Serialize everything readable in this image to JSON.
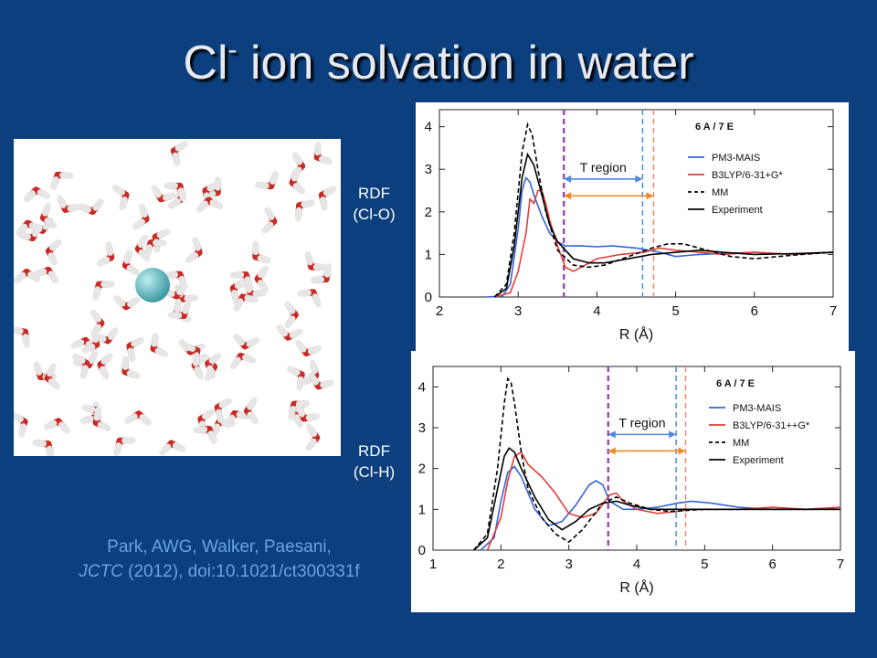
{
  "title": {
    "main": "Cl",
    "sup": "-",
    "rest": " ion solvation in water"
  },
  "labels": [
    {
      "line1": "RDF",
      "line2": "(Cl-O)"
    },
    {
      "line1": "RDF",
      "line2": "(Cl-H)"
    }
  ],
  "citation": {
    "line1": "Park, AWG, Walker, Paesani,",
    "journal": "JCTC",
    "rest": " (2012), doi:10.1021/ct300331f"
  },
  "colors": {
    "background": "#0b3f7d",
    "pm3": "#3465d9",
    "b3lyp": "#e0403a",
    "mm": "#000000",
    "exp": "#000000",
    "t_arrow_blue": "#4a8be0",
    "t_arrow_orange": "#f08a24"
  },
  "chart_data": [
    {
      "type": "line",
      "xlabel": "R (Å)",
      "ylabel": "",
      "xlim": [
        2,
        7
      ],
      "ylim": [
        0,
        4.4
      ],
      "xticks": [
        "2",
        "3",
        "4",
        "5",
        "6",
        "7"
      ],
      "yticks": [
        "0",
        "1",
        "2",
        "3",
        "4"
      ],
      "header": "6 A / 7      E",
      "annotation": "T region",
      "t_region": {
        "blue": [
          3.58,
          4.58
        ],
        "orange": [
          3.58,
          4.72
        ]
      },
      "vlines": [
        3.58,
        4.58,
        4.72
      ],
      "series": [
        {
          "name": "PM3-MAIS",
          "style": "solid",
          "x": [
            2.6,
            2.8,
            2.9,
            3.0,
            3.05,
            3.1,
            3.15,
            3.2,
            3.3,
            3.4,
            3.5,
            3.6,
            3.8,
            4.0,
            4.2,
            4.5,
            4.8,
            5.0,
            5.3,
            5.6,
            6.0,
            6.5,
            7.0
          ],
          "y": [
            0,
            0.02,
            0.3,
            1.6,
            2.5,
            2.8,
            2.7,
            2.4,
            1.9,
            1.5,
            1.3,
            1.2,
            1.2,
            1.18,
            1.2,
            1.15,
            1.05,
            0.95,
            1.0,
            1.02,
            1.05,
            1.0,
            1.05
          ]
        },
        {
          "name": "B3LYP/6-31+G*",
          "style": "solid",
          "x": [
            2.7,
            2.9,
            3.0,
            3.1,
            3.15,
            3.2,
            3.25,
            3.3,
            3.35,
            3.4,
            3.5,
            3.6,
            3.7,
            3.8,
            4.0,
            4.3,
            4.6,
            4.8,
            5.0,
            5.3,
            5.6,
            6.0,
            6.5,
            7.0
          ],
          "y": [
            0,
            0.1,
            0.6,
            1.5,
            2.3,
            2.2,
            2.5,
            2.5,
            2.2,
            1.8,
            1.2,
            0.7,
            0.6,
            0.7,
            0.9,
            1.0,
            1.05,
            1.15,
            1.1,
            1.05,
            1.0,
            1.05,
            1.0,
            1.05
          ]
        },
        {
          "name": "MM",
          "style": "dashed",
          "x": [
            2.7,
            2.85,
            2.95,
            3.05,
            3.12,
            3.18,
            3.25,
            3.35,
            3.5,
            3.7,
            3.9,
            4.1,
            4.4,
            4.7,
            4.9,
            5.1,
            5.4,
            5.7,
            6.0,
            6.3,
            6.6,
            7.0
          ],
          "y": [
            0,
            0.3,
            1.5,
            3.4,
            4.05,
            3.8,
            3.0,
            2.0,
            1.1,
            0.75,
            0.7,
            0.75,
            0.95,
            1.15,
            1.25,
            1.25,
            1.1,
            0.95,
            0.9,
            0.95,
            1.0,
            1.05
          ]
        },
        {
          "name": "Experiment",
          "style": "solid",
          "x": [
            2.7,
            2.85,
            2.95,
            3.05,
            3.12,
            3.2,
            3.3,
            3.4,
            3.5,
            3.7,
            3.9,
            4.1,
            4.4,
            4.7,
            5.0,
            5.3,
            5.6,
            6.0,
            6.5,
            7.0
          ],
          "y": [
            0,
            0.2,
            1.2,
            2.8,
            3.35,
            3.1,
            2.4,
            1.7,
            1.3,
            0.9,
            0.8,
            0.8,
            0.9,
            1.0,
            1.05,
            1.1,
            1.05,
            1.0,
            1.02,
            1.05
          ]
        }
      ]
    },
    {
      "type": "line",
      "xlabel": "R (Å)",
      "ylabel": "",
      "xlim": [
        1,
        7
      ],
      "ylim": [
        0,
        4.5
      ],
      "xticks": [
        "1",
        "2",
        "3",
        "4",
        "5",
        "6",
        "7"
      ],
      "yticks": [
        "0",
        "1",
        "2",
        "3",
        "4"
      ],
      "header": "6 A / 7      E",
      "annotation": "T region",
      "t_region": {
        "blue": [
          3.58,
          4.58
        ],
        "orange": [
          3.58,
          4.72
        ]
      },
      "vlines": [
        3.58,
        4.58,
        4.72
      ],
      "series": [
        {
          "name": "PM3-MAIS",
          "style": "solid",
          "x": [
            1.7,
            1.9,
            2.0,
            2.1,
            2.2,
            2.3,
            2.5,
            2.7,
            2.9,
            3.1,
            3.3,
            3.4,
            3.5,
            3.6,
            3.8,
            4.0,
            4.3,
            4.6,
            4.8,
            5.1,
            5.5,
            6.0,
            6.5,
            7.0
          ],
          "y": [
            0,
            0.3,
            1.2,
            1.9,
            2.05,
            1.8,
            1.0,
            0.6,
            0.7,
            1.1,
            1.6,
            1.7,
            1.6,
            1.2,
            1.0,
            1.0,
            1.05,
            1.15,
            1.2,
            1.15,
            1.05,
            1.0,
            1.0,
            1.05
          ]
        },
        {
          "name": "B3LYP/6-31++G*",
          "style": "solid",
          "x": [
            1.8,
            2.0,
            2.1,
            2.2,
            2.3,
            2.4,
            2.6,
            2.8,
            3.0,
            3.2,
            3.4,
            3.6,
            3.7,
            3.8,
            4.0,
            4.3,
            4.6,
            4.8,
            5.0,
            5.5,
            6.0,
            6.5,
            7.0
          ],
          "y": [
            0,
            0.8,
            1.7,
            2.3,
            2.4,
            2.1,
            1.8,
            1.4,
            0.9,
            0.8,
            0.9,
            1.35,
            1.4,
            1.2,
            1.0,
            0.9,
            0.95,
            1.0,
            1.0,
            1.0,
            1.05,
            1.0,
            1.05
          ]
        },
        {
          "name": "MM",
          "style": "dashed",
          "x": [
            1.6,
            1.8,
            1.95,
            2.05,
            2.1,
            2.15,
            2.2,
            2.3,
            2.4,
            2.6,
            2.8,
            3.0,
            3.2,
            3.5,
            3.7,
            3.9,
            4.2,
            4.5,
            5.0,
            5.5,
            6.0,
            6.5,
            7.0
          ],
          "y": [
            0,
            0.4,
            2.0,
            3.6,
            4.2,
            4.1,
            3.6,
            2.4,
            1.5,
            0.8,
            0.4,
            0.2,
            0.5,
            1.15,
            1.3,
            1.15,
            1.0,
            0.95,
            1.0,
            1.0,
            1.0,
            1.0,
            1.0
          ]
        },
        {
          "name": "Experiment",
          "style": "solid",
          "x": [
            1.6,
            1.8,
            1.95,
            2.05,
            2.12,
            2.2,
            2.3,
            2.5,
            2.7,
            2.9,
            3.1,
            3.3,
            3.5,
            3.7,
            3.9,
            4.2,
            4.5,
            5.0,
            5.5,
            6.0,
            6.5,
            7.0
          ],
          "y": [
            0,
            0.3,
            1.5,
            2.3,
            2.5,
            2.4,
            2.0,
            1.3,
            0.75,
            0.5,
            0.7,
            1.0,
            1.15,
            1.2,
            1.1,
            1.0,
            1.0,
            1.0,
            1.0,
            1.0,
            1.0,
            1.0
          ]
        }
      ]
    }
  ]
}
